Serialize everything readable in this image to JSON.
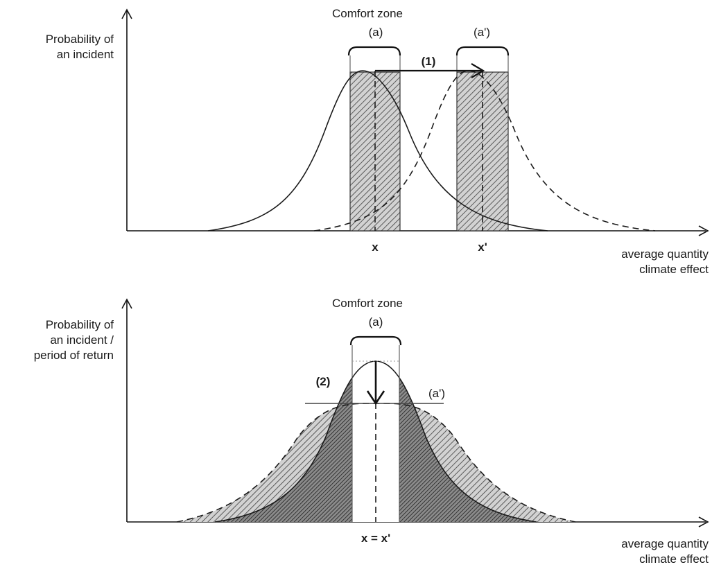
{
  "panels": [
    {
      "comfort_zone_label": "Comfort zone",
      "label_a": "(a)",
      "label_a_prime": "(a')",
      "y_axis_label": [
        "Probability of",
        "an incident"
      ],
      "x_axis_label": [
        "average quantity",
        "climate effect"
      ],
      "marker_label": "(1)",
      "tick_x": "x",
      "tick_x_prime": "x'"
    },
    {
      "comfort_zone_label": "Comfort zone",
      "label_a": "(a)",
      "label_a_prime": "(a')",
      "y_axis_label": [
        "Probability of",
        "an incident /",
        "period of return"
      ],
      "x_axis_label": [
        "average quantity",
        "climate effect"
      ],
      "marker_label": "(2)",
      "tick_x": "x = x'"
    }
  ],
  "colors": {
    "ink": "#1a1a1a",
    "hatch_fill": "#cfcfcf",
    "dense_fill": "#6e6e6e"
  }
}
